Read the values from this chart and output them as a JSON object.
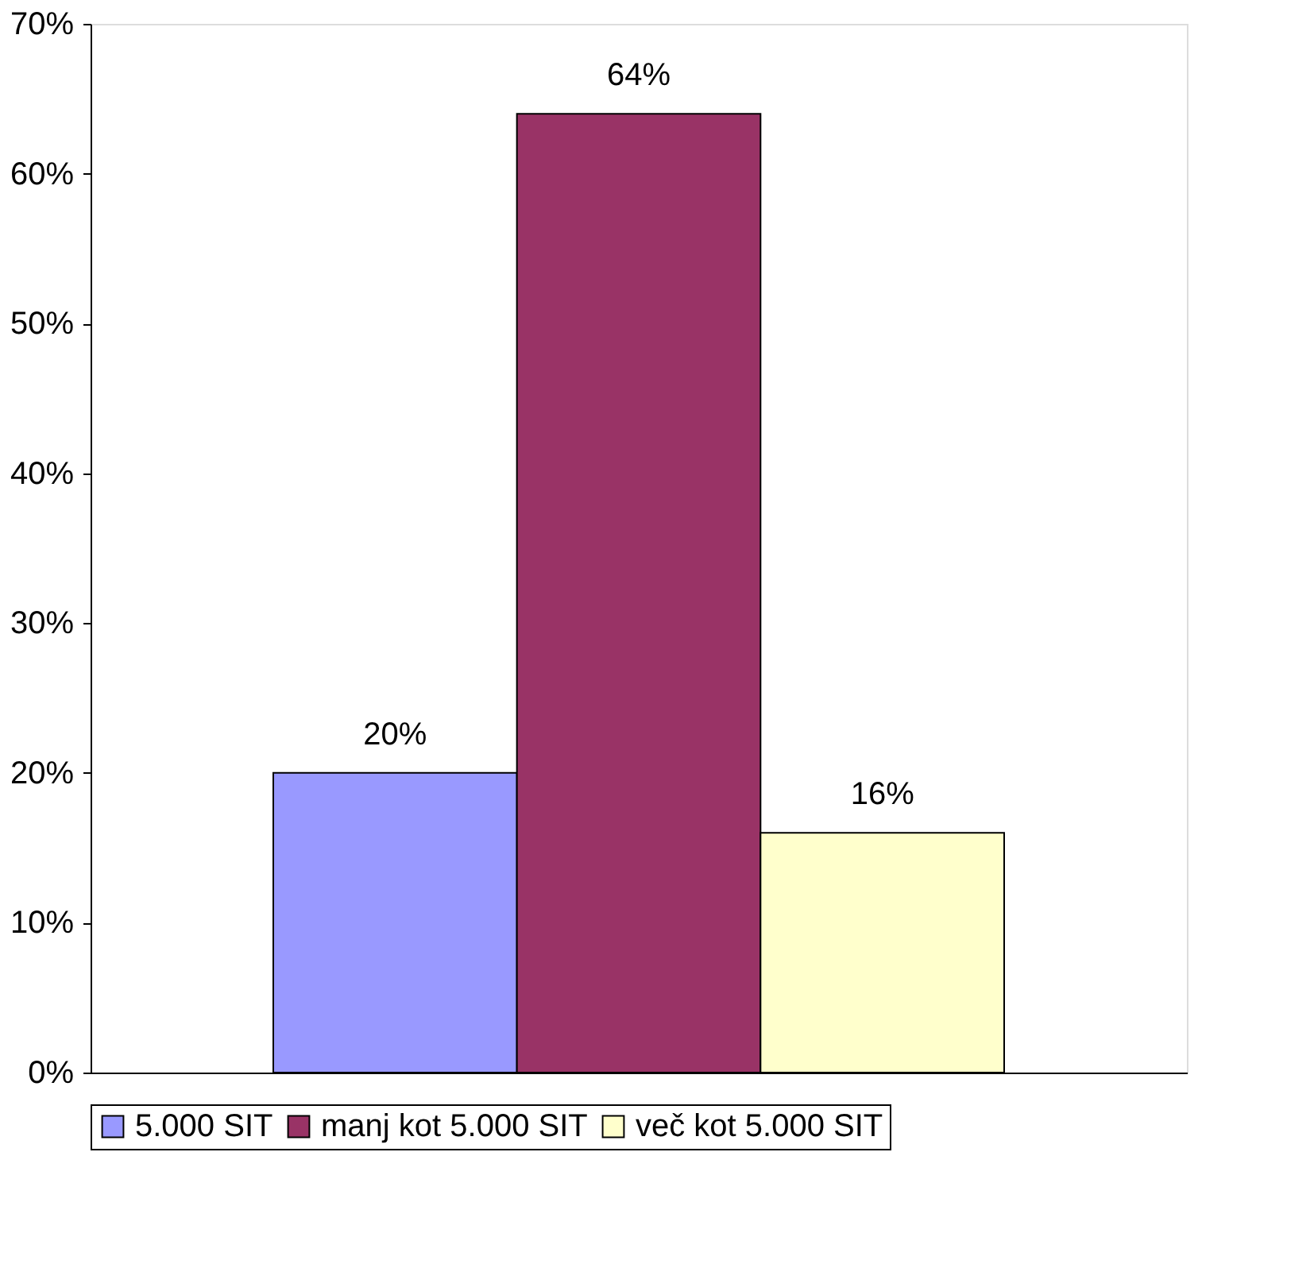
{
  "chart_data": {
    "type": "bar",
    "categories": [
      null
    ],
    "series": [
      {
        "name": "5.000 SIT",
        "color": "#9999ff",
        "values": [
          20
        ],
        "value_labels": [
          "20%"
        ]
      },
      {
        "name": "manj kot 5.000 SIT",
        "color": "#993366",
        "values": [
          64
        ],
        "value_labels": [
          "64%"
        ]
      },
      {
        "name": "več kot 5.000 SIT",
        "color": "#ffffcc",
        "values": [
          16
        ],
        "value_labels": [
          "16%"
        ]
      }
    ],
    "ylim": [
      0,
      70
    ],
    "yticks": [
      {
        "value": 0,
        "label": "0%"
      },
      {
        "value": 10,
        "label": "10%"
      },
      {
        "value": 20,
        "label": "20%"
      },
      {
        "value": 30,
        "label": "30%"
      },
      {
        "value": 40,
        "label": "40%"
      },
      {
        "value": 50,
        "label": "50%"
      },
      {
        "value": 60,
        "label": "60%"
      },
      {
        "value": 70,
        "label": "70%"
      }
    ],
    "grid": false,
    "legend": "bottom"
  }
}
